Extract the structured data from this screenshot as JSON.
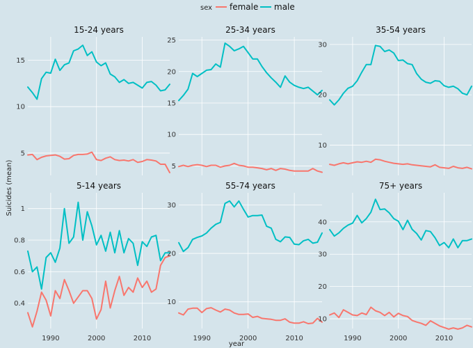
{
  "chart_data": {
    "type": "line",
    "xlabel": "year",
    "ylabel": "Suicides (mean)",
    "legend": {
      "title": "sex",
      "position": "top",
      "entries": [
        {
          "name": "female",
          "color": "#f8766d"
        },
        {
          "name": "male",
          "color": "#00bfc4"
        }
      ]
    },
    "x_ticks": [
      1990,
      2000,
      2010
    ],
    "x_range": [
      1985,
      2016
    ],
    "grid": true,
    "panels": [
      {
        "title": "15-24 years",
        "ylim": [
          2.6,
          17.5
        ],
        "yticks": [
          5,
          10,
          15
        ],
        "series": [
          {
            "name": "female",
            "values": [
              4.8,
              4.85,
              4.3,
              4.55,
              4.7,
              4.75,
              4.8,
              4.65,
              4.35,
              4.4,
              4.75,
              4.85,
              4.85,
              4.9,
              5.1,
              4.3,
              4.2,
              4.45,
              4.6,
              4.3,
              4.2,
              4.25,
              4.15,
              4.3,
              4.0,
              4.1,
              4.3,
              4.25,
              4.15,
              3.8,
              3.8,
              2.9
            ]
          },
          {
            "name": "male",
            "values": [
              12.1,
              11.5,
              10.8,
              13.0,
              13.7,
              13.6,
              15.1,
              13.9,
              14.5,
              14.7,
              16.0,
              16.2,
              16.6,
              15.5,
              15.9,
              14.8,
              14.4,
              14.7,
              13.5,
              13.2,
              12.6,
              12.9,
              12.5,
              12.6,
              12.3,
              12.0,
              12.6,
              12.7,
              12.3,
              11.7,
              11.8,
              12.4
            ]
          }
        ]
      },
      {
        "title": "25-34 years",
        "ylim": [
          3.5,
          25.5
        ],
        "yticks": [
          5,
          10,
          15,
          20,
          25
        ],
        "series": [
          {
            "name": "female",
            "values": [
              4.9,
              5.1,
              4.9,
              5.1,
              5.2,
              5.1,
              4.9,
              5.1,
              5.1,
              4.8,
              5.0,
              5.1,
              5.4,
              5.1,
              5.0,
              4.8,
              4.8,
              4.7,
              4.6,
              4.4,
              4.6,
              4.3,
              4.6,
              4.5,
              4.3,
              4.2,
              4.2,
              4.2,
              4.2,
              4.6,
              4.2,
              4.0
            ]
          },
          {
            "name": "male",
            "values": [
              15.4,
              16.2,
              17.2,
              19.7,
              19.2,
              19.7,
              20.2,
              20.3,
              21.2,
              20.7,
              24.5,
              24.0,
              23.3,
              23.6,
              24.0,
              23.0,
              22.0,
              22.0,
              20.8,
              19.8,
              19.0,
              18.3,
              17.5,
              19.3,
              18.3,
              17.8,
              17.5,
              17.3,
              17.5,
              16.9,
              16.3,
              17.0
            ]
          }
        ]
      },
      {
        "title": "35-54 years",
        "ylim": [
          4,
          31.5
        ],
        "yticks": [
          10,
          20,
          30
        ],
        "series": [
          {
            "name": "female",
            "values": [
              6.2,
              6.0,
              6.3,
              6.5,
              6.3,
              6.5,
              6.7,
              6.6,
              6.8,
              6.6,
              7.2,
              7.1,
              6.8,
              6.6,
              6.4,
              6.3,
              6.2,
              6.3,
              6.1,
              6.0,
              5.9,
              5.8,
              5.7,
              6.1,
              5.6,
              5.5,
              5.4,
              5.8,
              5.5,
              5.4,
              5.6,
              5.3
            ]
          },
          {
            "name": "male",
            "values": [
              19.0,
              18.0,
              19.0,
              20.3,
              21.3,
              21.7,
              22.8,
              24.5,
              26.0,
              26.0,
              29.8,
              29.6,
              28.6,
              28.9,
              28.3,
              26.8,
              26.9,
              26.2,
              26.0,
              24.2,
              23.1,
              22.5,
              22.3,
              22.8,
              22.7,
              21.8,
              21.5,
              21.7,
              21.2,
              20.3,
              20.0,
              21.7
            ]
          }
        ]
      },
      {
        "title": "5-14 years",
        "ylim": [
          0.24,
          1.1
        ],
        "yticks": [
          0.4,
          0.6,
          0.8,
          1.0
        ],
        "series": [
          {
            "name": "female",
            "values": [
              0.34,
              0.25,
              0.35,
              0.47,
              0.42,
              0.32,
              0.48,
              0.43,
              0.55,
              0.48,
              0.4,
              0.44,
              0.48,
              0.48,
              0.43,
              0.3,
              0.36,
              0.54,
              0.37,
              0.48,
              0.57,
              0.45,
              0.5,
              0.47,
              0.56,
              0.5,
              0.54,
              0.47,
              0.49,
              0.64,
              0.69,
              0.7
            ]
          },
          {
            "name": "male",
            "values": [
              0.73,
              0.6,
              0.63,
              0.49,
              0.69,
              0.72,
              0.66,
              0.75,
              1.0,
              0.78,
              0.82,
              1.04,
              0.8,
              0.98,
              0.89,
              0.77,
              0.83,
              0.73,
              0.85,
              0.72,
              0.86,
              0.72,
              0.81,
              0.78,
              0.64,
              0.79,
              0.76,
              0.82,
              0.83,
              0.67,
              0.72,
              0.72
            ]
          }
        ]
      },
      {
        "title": "55-74 years",
        "ylim": [
          4.5,
          32.5
        ],
        "yticks": [
          10,
          20,
          30
        ],
        "series": [
          {
            "name": "female",
            "values": [
              7.7,
              7.3,
              8.5,
              8.7,
              8.7,
              7.8,
              8.6,
              8.8,
              8.3,
              7.9,
              8.5,
              8.3,
              7.7,
              7.4,
              7.4,
              7.5,
              6.8,
              7.0,
              6.6,
              6.5,
              6.4,
              6.2,
              6.2,
              6.5,
              5.8,
              5.6,
              5.6,
              5.9,
              5.5,
              5.6,
              6.6,
              5.8
            ]
          },
          {
            "name": "male",
            "values": [
              22.2,
              20.4,
              21.2,
              22.9,
              23.3,
              23.6,
              24.2,
              25.2,
              26.0,
              26.4,
              30.3,
              30.8,
              29.6,
              30.8,
              29.1,
              27.5,
              27.8,
              27.8,
              27.9,
              25.6,
              25.2,
              22.9,
              22.4,
              23.4,
              23.3,
              21.9,
              21.8,
              22.6,
              22.9,
              22.1,
              22.3,
              24.2
            ]
          }
        ]
      },
      {
        "title": "75+ years",
        "ylim": [
          7,
          49
        ],
        "yticks": [
          10,
          20,
          30,
          40
        ],
        "series": [
          {
            "name": "female",
            "values": [
              11.2,
              11.8,
              10.4,
              12.8,
              12.0,
              11.2,
              11.0,
              11.8,
              11.3,
              13.6,
              12.5,
              12.0,
              11.0,
              12.0,
              10.6,
              11.7,
              11.0,
              10.7,
              9.5,
              9.0,
              8.6,
              8.0,
              9.4,
              8.6,
              7.8,
              7.3,
              6.8,
              7.2,
              6.8,
              7.2,
              8.0,
              7.5
            ]
          },
          {
            "name": "male",
            "values": [
              37.6,
              35.6,
              36.6,
              38.0,
              39.0,
              39.6,
              42.0,
              39.7,
              41.0,
              43.0,
              47.0,
              43.8,
              44.0,
              42.8,
              41.0,
              40.2,
              37.6,
              40.5,
              37.7,
              36.4,
              34.4,
              37.3,
              37.0,
              35.1,
              32.7,
              33.6,
              32.0,
              34.7,
              32.0,
              34.2,
              34.2,
              34.7
            ]
          }
        ]
      }
    ]
  }
}
